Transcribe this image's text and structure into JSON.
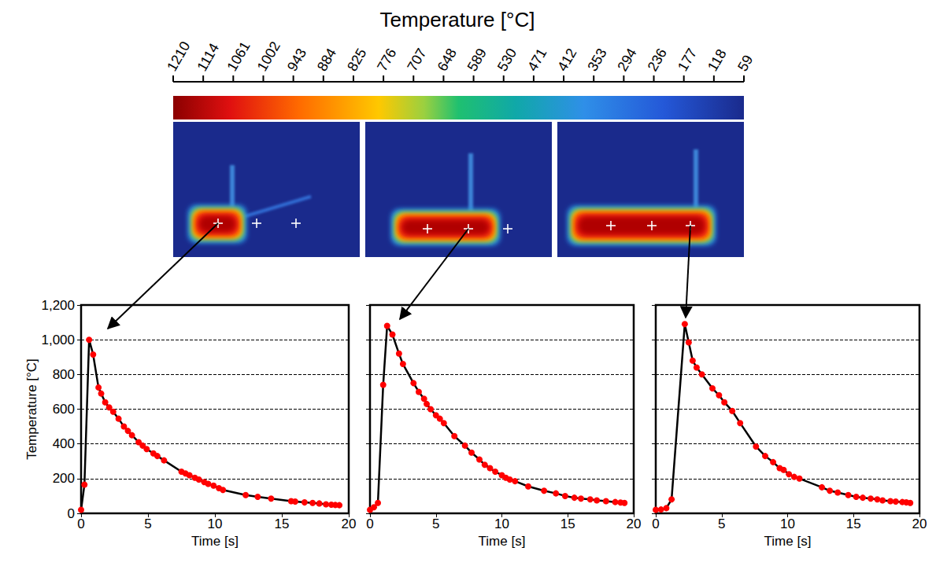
{
  "colorbar": {
    "label": "Temperature [°C]",
    "ticks": [
      1210,
      1114,
      1061,
      1002,
      943,
      884,
      825,
      776,
      707,
      648,
      589,
      530,
      471,
      412,
      353,
      294,
      236,
      177,
      118,
      59
    ]
  },
  "chart_data": [
    {
      "type": "line",
      "x_label": "Time [s]",
      "y_label": "Temperature [°C]",
      "xlim": [
        0,
        20
      ],
      "ylim": [
        0,
        1200
      ],
      "xticks": [
        0,
        5,
        10,
        15,
        20
      ],
      "yticks": [
        0,
        200,
        400,
        600,
        800,
        1000,
        1200
      ],
      "grid": true,
      "color": "#ff0000",
      "marker": "circle",
      "line_style": "solid",
      "x": [
        0,
        0.25,
        0.6,
        0.9,
        1.3,
        1.5,
        1.8,
        2.1,
        2.4,
        2.8,
        3.2,
        3.5,
        3.8,
        4.3,
        4.6,
        4.9,
        5.4,
        5.7,
        6.2,
        7.5,
        7.8,
        8.1,
        8.5,
        8.8,
        9.2,
        9.5,
        9.9,
        10.3,
        10.6,
        12.3,
        13.2,
        14.2,
        15.7,
        16.0,
        16.7,
        17.3,
        17.8,
        18.3,
        18.7,
        19.0,
        19.3
      ],
      "values": [
        20,
        165,
        1000,
        915,
        725,
        690,
        640,
        610,
        585,
        545,
        500,
        475,
        450,
        410,
        390,
        370,
        345,
        330,
        305,
        240,
        230,
        220,
        205,
        195,
        180,
        170,
        160,
        145,
        135,
        105,
        95,
        85,
        70,
        68,
        63,
        60,
        57,
        52,
        50,
        48,
        47
      ]
    },
    {
      "type": "line",
      "x_label": "Time [s]",
      "tick_labels": "x",
      "xlim": [
        0,
        20
      ],
      "ylim": [
        0,
        1200
      ],
      "xticks": [
        0,
        5,
        10,
        15,
        20
      ],
      "yticks": [
        0,
        200,
        400,
        600,
        800,
        1000,
        1200
      ],
      "grid": true,
      "color": "#ff0000",
      "marker": "circle",
      "line_style": "solid",
      "x": [
        0,
        0.3,
        0.6,
        1.0,
        1.3,
        1.7,
        2.2,
        2.5,
        3.3,
        3.7,
        4.1,
        4.3,
        4.6,
        5.0,
        5.3,
        5.6,
        6.4,
        7.2,
        7.7,
        8.3,
        8.7,
        9.1,
        9.5,
        10.0,
        10.3,
        10.6,
        11.0,
        12.0,
        13.2,
        14.1,
        14.8,
        15.5,
        16.0,
        16.7,
        17.2,
        17.9,
        18.6,
        19.0,
        19.3
      ],
      "values": [
        20,
        35,
        60,
        740,
        1080,
        1030,
        920,
        860,
        750,
        700,
        660,
        630,
        600,
        565,
        545,
        520,
        445,
        390,
        350,
        310,
        280,
        260,
        240,
        220,
        205,
        195,
        185,
        155,
        130,
        115,
        100,
        90,
        85,
        80,
        75,
        70,
        65,
        62,
        60
      ]
    },
    {
      "type": "line",
      "x_label": "Time [s]",
      "tick_labels": "x",
      "xlim": [
        0,
        20
      ],
      "ylim": [
        0,
        1200
      ],
      "xticks": [
        0,
        5,
        10,
        15,
        20
      ],
      "yticks": [
        0,
        200,
        400,
        600,
        800,
        1000,
        1200
      ],
      "grid": true,
      "color": "#ff0000",
      "marker": "circle",
      "line_style": "solid",
      "x": [
        0,
        0.4,
        0.8,
        1.2,
        2.2,
        2.5,
        2.8,
        3.1,
        3.5,
        4.3,
        4.8,
        5.2,
        5.8,
        6.4,
        7.6,
        8.3,
        8.9,
        9.4,
        9.7,
        10.1,
        10.5,
        10.9,
        12.6,
        13.2,
        13.8,
        14.6,
        15.2,
        15.7,
        16.3,
        16.8,
        17.2,
        17.8,
        18.2,
        18.7,
        19.0,
        19.3
      ],
      "values": [
        20,
        22,
        30,
        80,
        1090,
        985,
        880,
        840,
        800,
        720,
        680,
        640,
        590,
        520,
        385,
        330,
        295,
        260,
        250,
        225,
        210,
        200,
        150,
        130,
        120,
        105,
        95,
        90,
        85,
        80,
        75,
        70,
        68,
        65,
        63,
        60
      ]
    }
  ]
}
